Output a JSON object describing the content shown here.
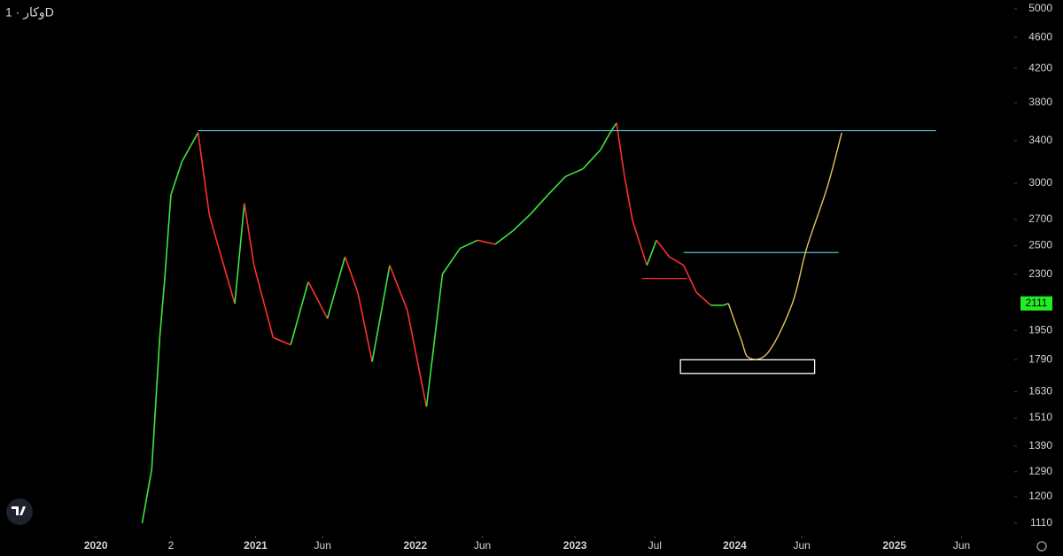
{
  "chart_data": {
    "type": "line",
    "title": "وکار · 1D",
    "log_scale": true,
    "grid": false,
    "up_color": "#3ee63e",
    "down_color": "#ff3030",
    "x": [
      2020.29,
      2020.35,
      2020.4,
      2020.43,
      2020.47,
      2020.54,
      2020.64,
      2020.71,
      2020.77,
      2020.87,
      2020.93,
      2020.99,
      2021.11,
      2021.22,
      2021.33,
      2021.45,
      2021.56,
      2021.64,
      2021.73,
      2021.84,
      2021.95,
      2022.07,
      2022.17,
      2022.28,
      2022.39,
      2022.5,
      2022.61,
      2022.72,
      2022.83,
      2022.94,
      2023.05,
      2023.16,
      2023.22,
      2023.26,
      2023.31,
      2023.36,
      2023.45,
      2023.51,
      2023.59,
      2023.68,
      2023.76,
      2023.85,
      2023.93,
      2023.96
    ],
    "values": [
      1110,
      1300,
      1910,
      2250,
      2900,
      3200,
      3480,
      2740,
      2480,
      2110,
      2830,
      2360,
      1910,
      1870,
      2250,
      2020,
      2420,
      2180,
      1780,
      2360,
      2070,
      1560,
      2300,
      2480,
      2540,
      2510,
      2610,
      2740,
      2900,
      3060,
      3130,
      3310,
      3480,
      3580,
      3060,
      2690,
      2360,
      2540,
      2420,
      2360,
      2180,
      2100,
      2100,
      2111
    ],
    "last_price": 2111,
    "last_price_color": "#22ee22",
    "xlim": [
      2019.4,
      2025.75
    ],
    "xticks": [
      2020,
      {
        "value": 2020.47,
        "label": "2"
      },
      2021,
      {
        "value": 2021.42,
        "label": "Jun"
      },
      2022,
      {
        "value": 2022.42,
        "label": "Jun"
      },
      2023,
      {
        "value": 2023.5,
        "label": "Jul"
      },
      2024,
      {
        "value": 2024.42,
        "label": "Jun"
      },
      2025,
      {
        "value": 2025.42,
        "label": "Jun"
      }
    ],
    "ylim": [
      1070,
      5130
    ],
    "yticks": [
      1110,
      1200,
      1290,
      1390,
      1510,
      1630,
      1790,
      1950,
      2300,
      2500,
      2700,
      3000,
      3400,
      3800,
      4200,
      4600,
      5000
    ],
    "drawings": [
      {
        "type": "hline",
        "y": 3500,
        "x": [
          2020.64,
          2025.26
        ],
        "color": "#4fc3d9"
      },
      {
        "type": "hline",
        "y": 2450,
        "x": [
          2023.68,
          2024.65
        ],
        "color": "#4fc3d9"
      },
      {
        "type": "hline",
        "y": 2270,
        "x": [
          2023.42,
          2023.7
        ],
        "color": "#ff3030"
      },
      {
        "type": "rect",
        "x": [
          2023.66,
          2024.5
        ],
        "y": [
          1720,
          1790
        ],
        "color": "#ffffff"
      },
      {
        "type": "curve",
        "x": [
          2023.96,
          2024.04,
          2024.09,
          2024.21,
          2024.36,
          2024.45,
          2024.58,
          2024.67
        ],
        "y": [
          2111,
          1900,
          1800,
          1830,
          2110,
          2480,
          2970,
          3480
        ],
        "color": "#e6c35c"
      }
    ]
  }
}
